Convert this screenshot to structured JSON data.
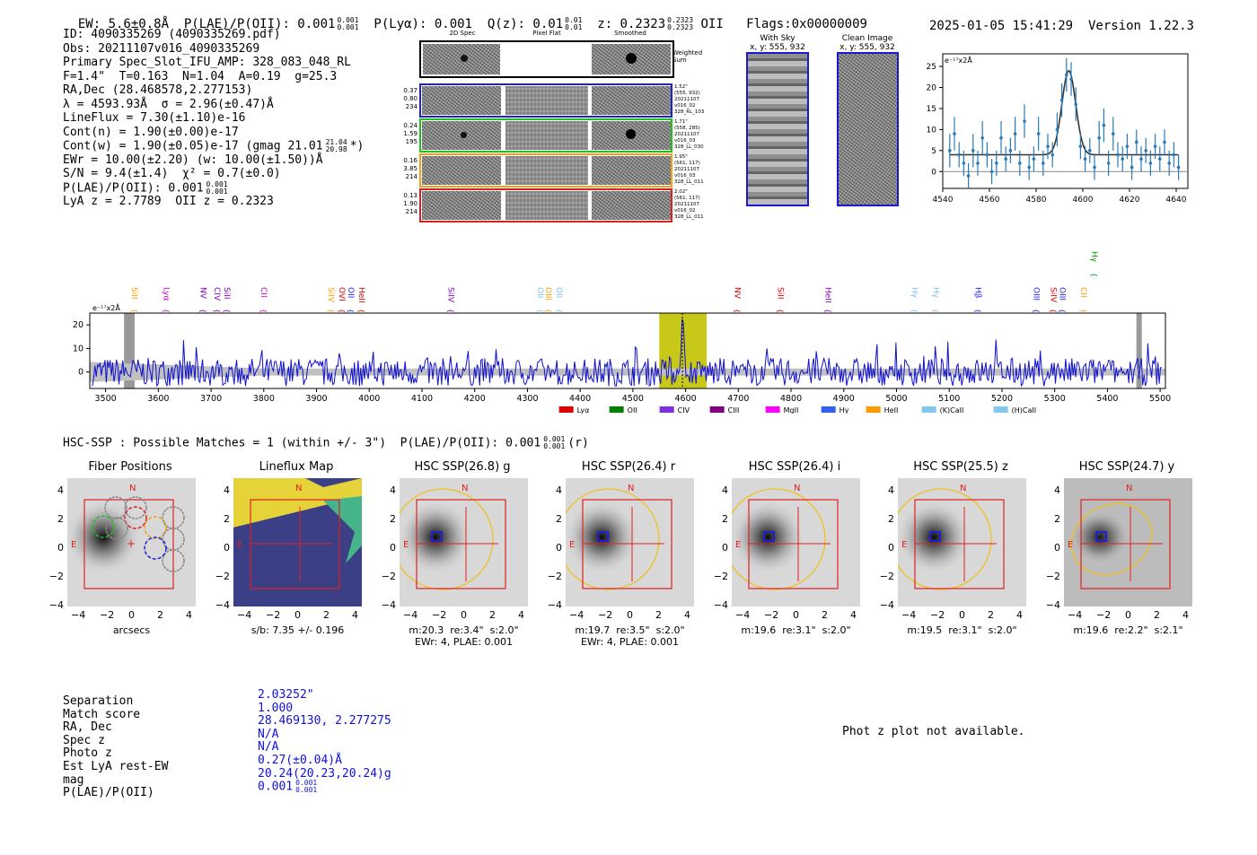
{
  "header": {
    "ew": "EW: 5.6±0.8Å",
    "plae": "P(LAE)/P(OII): 0.001",
    "plae_hi": "0.001",
    "plae_lo": "0.001",
    "plya": "P(Lyα): 0.001",
    "qz": "Q(z): 0.01",
    "qz_hi": "0.01",
    "qz_lo": "0.01",
    "z": "z: 0.2323",
    "z_hi": "0.2323",
    "z_lo": "0.2323",
    "z_line": "OII",
    "flags": "Flags:0x00000009",
    "timestamp": "2025-01-05 15:41:29",
    "version": "Version 1.22.3"
  },
  "info": {
    "id": "ID: 4090335269 (4090335269.pdf)",
    "obs": "Obs: 20211107v016_4090335269",
    "primary": "Primary Spec_Slot_IFU_AMP: 328_083_048_RL",
    "fwhm": "F=1.4\"  T=0.163  N=1.04  A=0.19  g=25.3",
    "radec": "RA,Dec (28.468578,2.277153)",
    "lambda": "λ = 4593.93Å  σ = 2.96(±0.47)Å",
    "lineflux": "LineFlux = 7.30(±1.10)e-16",
    "contn": "Cont(n) = 1.90(±0.00)e-17",
    "contw": "Cont(w) = 1.90(±0.05)e-17 (gmag 21.01",
    "contw_hi": "21.04",
    "contw_lo": "20.98",
    "contw_tail": "*)",
    "ewr": "EWr = 10.00(±2.20) (w: 10.00(±1.50))Å",
    "sn": "S/N = 9.4(±1.4)  χ² = 0.7(±0.0)",
    "plae": "P(LAE)/P(OII): 0.001",
    "plae_hi": "0.001",
    "plae_lo": "0.001",
    "lya": "LyA z = 2.7789  OII z = 0.2323"
  },
  "spec2d": {
    "col_headers": [
      "2D Spec",
      "Pixel Flat",
      "Smoothed"
    ],
    "weighted_label": "Weighted Sum",
    "rows": [
      {
        "nums": [
          "0.37",
          "0.80",
          "234"
        ],
        "side": [
          "1.52\"",
          "(555, 932)",
          "20211107",
          "v016_02",
          "328_RL_103"
        ]
      },
      {
        "nums": [
          "0.24",
          "1.59",
          "195"
        ],
        "side": [
          "1.71\"",
          "(558, 285)",
          "20211107",
          "v016_03",
          "328_LL_030"
        ]
      },
      {
        "nums": [
          "0.16",
          "3.85",
          "214"
        ],
        "side": [
          "1.95\"",
          "(561, 117)",
          "20211107",
          "v016_03",
          "328_LL_011"
        ]
      },
      {
        "nums": [
          "0.13",
          "1.90",
          "214"
        ],
        "side": [
          "2.02\"",
          "(561, 117)",
          "20211107",
          "v016_02",
          "328_LL_011"
        ]
      }
    ],
    "row_colors": [
      "#2020d0",
      "#20c020",
      "#f0a020",
      "#e02020"
    ]
  },
  "sky_panels": [
    {
      "title": "With Sky",
      "sub": "x, y: 555, 932"
    },
    {
      "title": "Clean Image",
      "sub": "x, y: 555, 932"
    }
  ],
  "chart_data": [
    {
      "type": "line",
      "title": "",
      "unit_label": "e⁻¹⁷x2Å",
      "xlabel": "",
      "ylabel": "",
      "xlim": [
        4540,
        4645
      ],
      "ylim": [
        -4,
        28
      ],
      "xticks": [
        4540,
        4560,
        4580,
        4600,
        4620,
        4640
      ],
      "yticks": [
        0,
        5,
        10,
        15,
        20,
        25
      ],
      "fit_center": 4594,
      "fit_sigma": 2.96,
      "fit_amp": 20,
      "fit_cont": 4,
      "points": [
        {
          "x": 4543,
          "y": 5,
          "e": 4
        },
        {
          "x": 4545,
          "y": 9,
          "e": 4
        },
        {
          "x": 4547,
          "y": 4,
          "e": 3
        },
        {
          "x": 4549,
          "y": 2,
          "e": 3
        },
        {
          "x": 4551,
          "y": -1,
          "e": 3
        },
        {
          "x": 4553,
          "y": 5,
          "e": 4
        },
        {
          "x": 4555,
          "y": 2,
          "e": 3
        },
        {
          "x": 4557,
          "y": 8,
          "e": 4
        },
        {
          "x": 4559,
          "y": 4,
          "e": 3
        },
        {
          "x": 4561,
          "y": 0,
          "e": 3
        },
        {
          "x": 4563,
          "y": 2,
          "e": 3
        },
        {
          "x": 4565,
          "y": 8,
          "e": 4
        },
        {
          "x": 4567,
          "y": 3,
          "e": 3
        },
        {
          "x": 4569,
          "y": 5,
          "e": 3
        },
        {
          "x": 4571,
          "y": 9,
          "e": 4
        },
        {
          "x": 4573,
          "y": 2,
          "e": 3
        },
        {
          "x": 4575,
          "y": 12,
          "e": 4
        },
        {
          "x": 4577,
          "y": 1,
          "e": 3
        },
        {
          "x": 4579,
          "y": 3,
          "e": 3
        },
        {
          "x": 4581,
          "y": 9,
          "e": 4
        },
        {
          "x": 4583,
          "y": 2,
          "e": 3
        },
        {
          "x": 4585,
          "y": 6,
          "e": 3
        },
        {
          "x": 4587,
          "y": 4,
          "e": 3
        },
        {
          "x": 4589,
          "y": 10,
          "e": 4
        },
        {
          "x": 4591,
          "y": 17,
          "e": 4
        },
        {
          "x": 4593,
          "y": 23,
          "e": 4
        },
        {
          "x": 4595,
          "y": 22,
          "e": 4
        },
        {
          "x": 4597,
          "y": 16,
          "e": 4
        },
        {
          "x": 4599,
          "y": 6,
          "e": 3
        },
        {
          "x": 4601,
          "y": 3,
          "e": 3
        },
        {
          "x": 4603,
          "y": 5,
          "e": 3
        },
        {
          "x": 4605,
          "y": 1,
          "e": 3
        },
        {
          "x": 4607,
          "y": 8,
          "e": 4
        },
        {
          "x": 4609,
          "y": 11,
          "e": 4
        },
        {
          "x": 4611,
          "y": 2,
          "e": 3
        },
        {
          "x": 4613,
          "y": 9,
          "e": 4
        },
        {
          "x": 4615,
          "y": 4,
          "e": 3
        },
        {
          "x": 4617,
          "y": 3,
          "e": 3
        },
        {
          "x": 4619,
          "y": 6,
          "e": 3
        },
        {
          "x": 4621,
          "y": 1,
          "e": 3
        },
        {
          "x": 4623,
          "y": 7,
          "e": 3
        },
        {
          "x": 4625,
          "y": 3,
          "e": 3
        },
        {
          "x": 4627,
          "y": 5,
          "e": 3
        },
        {
          "x": 4629,
          "y": 2,
          "e": 3
        },
        {
          "x": 4631,
          "y": 6,
          "e": 3
        },
        {
          "x": 4633,
          "y": 3,
          "e": 3
        },
        {
          "x": 4635,
          "y": 7,
          "e": 3
        },
        {
          "x": 4637,
          "y": 2,
          "e": 3
        },
        {
          "x": 4639,
          "y": 4,
          "e": 3
        },
        {
          "x": 4641,
          "y": 1,
          "e": 3
        }
      ]
    },
    {
      "type": "line",
      "title": "",
      "unit_label": "e⁻¹⁷x2Å",
      "xlabel": "",
      "ylabel": "",
      "xlim": [
        3470,
        5510
      ],
      "ylim": [
        -7,
        25
      ],
      "xticks": [
        3500,
        3600,
        3700,
        3800,
        3900,
        4000,
        4100,
        4200,
        4300,
        4400,
        4500,
        4600,
        4700,
        4800,
        4900,
        5000,
        5100,
        5200,
        5300,
        5400,
        5500
      ],
      "yticks": [
        0,
        10,
        20
      ],
      "highlight_band": [
        4550,
        4640
      ],
      "line_center": 4594,
      "gray_bands": [
        [
          3535,
          3555
        ],
        [
          5455,
          5465
        ]
      ],
      "lines": [
        {
          "name": "SiII",
          "x": 3545,
          "color": "#ff9a00"
        },
        {
          "name": "Lyα",
          "x": 3605,
          "color": "#cc00cc"
        },
        {
          "name": "NV",
          "x": 3675,
          "color": "#8000c0"
        },
        {
          "name": "CIV",
          "x": 3702,
          "color": "#8000c0"
        },
        {
          "name": "SiII",
          "x": 3720,
          "color": "#8000c0"
        },
        {
          "name": "CII",
          "x": 3790,
          "color": "#cc00cc"
        },
        {
          "name": "SiIV",
          "x": 3918,
          "color": "#ff9a00"
        },
        {
          "name": "OVI",
          "x": 3918,
          "color": "#e00000"
        },
        {
          "name": "OII",
          "x": 3955,
          "color": "#2020ff"
        },
        {
          "name": "HeII",
          "x": 3955,
          "color": "#e00000"
        },
        {
          "name": "SiIV",
          "x": 4145,
          "color": "#8000c0"
        },
        {
          "name": "OII",
          "x": 4315,
          "color": "#80c0ff"
        },
        {
          "name": "OIII",
          "x": 4330,
          "color": "#ff9a00"
        },
        {
          "name": "OII",
          "x": 4350,
          "color": "#80c0ff"
        },
        {
          "name": "NV",
          "x": 4688,
          "color": "#e00000"
        },
        {
          "name": "SiII",
          "x": 4770,
          "color": "#e00000"
        },
        {
          "name": "HeII",
          "x": 4860,
          "color": "#8000c0"
        },
        {
          "name": "Hγ",
          "x": 5025,
          "color": "#80c0ff"
        },
        {
          "name": "Hγ",
          "x": 5065,
          "color": "#80c0ff"
        },
        {
          "name": "Hβ",
          "x": 5145,
          "color": "#2020ff"
        },
        {
          "name": "OIII",
          "x": 5255,
          "color": "#2020ff"
        },
        {
          "name": "SiIV",
          "x": 5288,
          "color": "#e00000"
        },
        {
          "name": "OIII",
          "x": 5305,
          "color": "#2020ff"
        },
        {
          "name": "CII",
          "x": 5345,
          "color": "#ff9a00"
        },
        {
          "name": "Hγ",
          "x": 5345,
          "color": "#00a000"
        }
      ],
      "legend": [
        {
          "label": "Lyα",
          "color": "#e00000"
        },
        {
          "label": "OII",
          "color": "#008000"
        },
        {
          "label": "CIV",
          "color": "#8030e0"
        },
        {
          "label": "CIII",
          "color": "#800080"
        },
        {
          "label": "MgII",
          "color": "#ff00ff"
        },
        {
          "label": "Hγ",
          "color": "#3060f0"
        },
        {
          "label": "HeII",
          "color": "#ff9a00"
        },
        {
          "label": "(K)CaII",
          "color": "#80c8f0"
        },
        {
          "label": "(H)CaII",
          "color": "#80c8f0"
        }
      ]
    }
  ],
  "hsc": {
    "line": "HSC-SSP : Possible Matches = 1 (within +/- 3\")  P(LAE)/P(OII): 0.001",
    "hi": "0.001",
    "lo": "0.001",
    "tail": "(r)",
    "panels": [
      {
        "title": "Fiber Positions",
        "cap1": "arcsecs",
        "cap2": ""
      },
      {
        "title": "Lineflux Map",
        "cap1": "s/b: 7.35 +/- 0.196",
        "cap2": ""
      },
      {
        "title": "HSC SSP(26.8) g",
        "cap1": "m:20.3  re:3.4\"  s:2.0\"",
        "cap2": "EWr: 4, PLAE: 0.001"
      },
      {
        "title": "HSC SSP(26.4) r",
        "cap1": "m:19.7  re:3.5\"  s:2.0\"",
        "cap2": "EWr: 4, PLAE: 0.001"
      },
      {
        "title": "HSC SSP(26.4) i",
        "cap1": "m:19.6  re:3.1\"  s:2.0\"",
        "cap2": ""
      },
      {
        "title": "HSC SSP(25.5) z",
        "cap1": "m:19.5  re:3.1\"  s:2.0\"",
        "cap2": ""
      },
      {
        "title": "HSC SSP(24.7) y",
        "cap1": "m:19.6  re:2.2\"  s:2.1\"",
        "cap2": ""
      }
    ],
    "ticks": [
      "−4",
      "−2",
      "0",
      "2",
      "4"
    ],
    "north": "N",
    "east": "E"
  },
  "match": {
    "labels": [
      "Separation",
      "Match score",
      "RA, Dec",
      "Spec z",
      "Photo z",
      "Est LyA rest-EW",
      "mag",
      "P(LAE)/P(OII)"
    ],
    "values": [
      "2.03252\"",
      "1.000",
      "28.469130, 2.277275",
      "N/A",
      "N/A",
      "0.27(±0.04)Å",
      "20.24(20.23,20.24)g",
      "0.001"
    ],
    "plae_hi": "0.001",
    "plae_lo": "0.001",
    "photz_msg": "Phot z plot not available."
  }
}
